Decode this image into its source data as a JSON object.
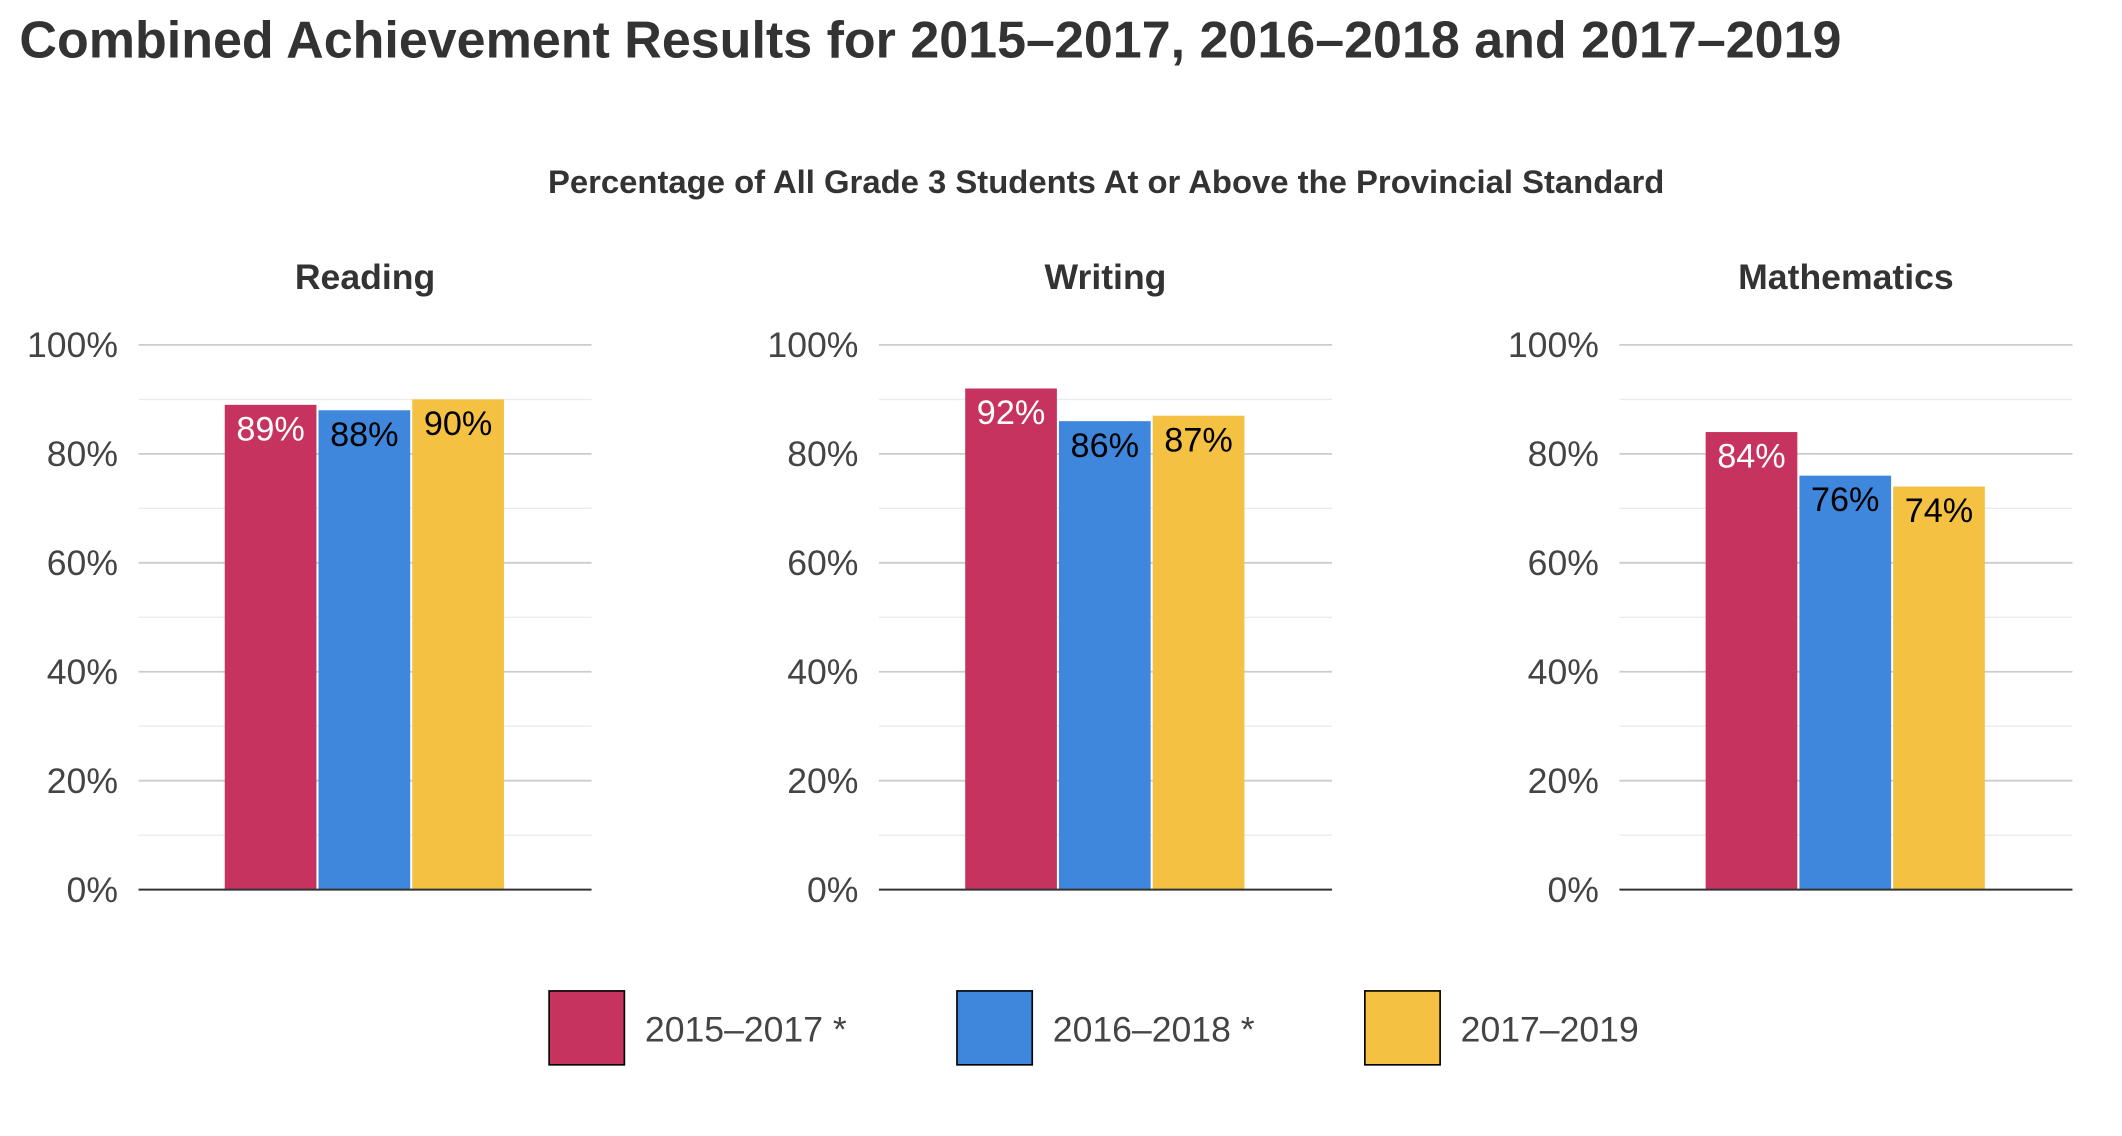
{
  "chart_data": {
    "type": "bar",
    "title": "Combined Achievement Results for 2015–2017, 2016–2018 and 2017–2019",
    "subtitle": "Percentage of All Grade 3 Students At or Above the Provincial Standard",
    "ylim": [
      0,
      100
    ],
    "yticks": [
      "0%",
      "20%",
      "40%",
      "60%",
      "80%",
      "100%"
    ],
    "grid": true,
    "legend_position": "bottom",
    "series": [
      {
        "name": "2015–2017 *",
        "color": "#c6335e",
        "label_color": "#ffffff"
      },
      {
        "name": "2016–2018 *",
        "color": "#3e87dc",
        "label_color": "#000000"
      },
      {
        "name": "2017–2019",
        "color": "#f4c143",
        "label_color": "#000000"
      }
    ],
    "panels": [
      {
        "title": "Reading",
        "values": [
          89,
          88,
          90
        ],
        "labels": [
          "89%",
          "88%",
          "90%"
        ]
      },
      {
        "title": "Writing",
        "values": [
          92,
          86,
          87
        ],
        "labels": [
          "92%",
          "86%",
          "87%"
        ]
      },
      {
        "title": "Mathematics",
        "values": [
          84,
          76,
          74
        ],
        "labels": [
          "84%",
          "76%",
          "74%"
        ]
      }
    ]
  }
}
